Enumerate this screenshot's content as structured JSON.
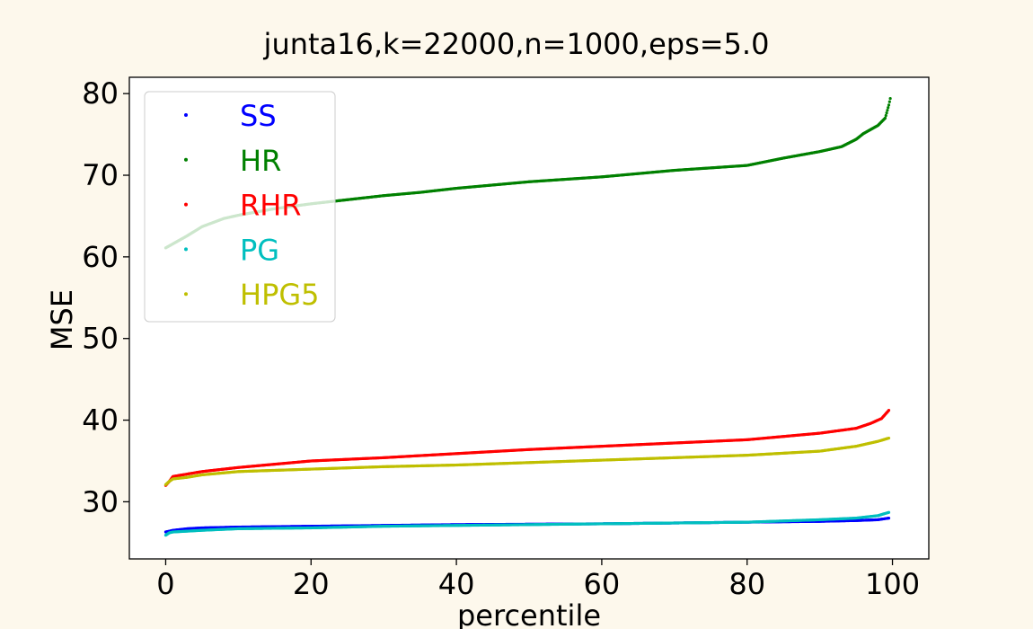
{
  "chart_data": {
    "type": "scatter",
    "title": "junta16,k=22000,n=1000,eps=5.0",
    "xlabel": "percentile",
    "ylabel": "MSE",
    "xlim": [
      -5,
      105
    ],
    "ylim": [
      23,
      82
    ],
    "xticks": [
      0,
      20,
      40,
      60,
      80,
      100
    ],
    "yticks": [
      30,
      40,
      50,
      60,
      70,
      80
    ],
    "grid": false,
    "legend_position": "upper-left",
    "series": [
      {
        "name": "SS",
        "color": "#0000ff",
        "points": [
          [
            0,
            26.3
          ],
          [
            1,
            26.5
          ],
          [
            3,
            26.7
          ],
          [
            5,
            26.8
          ],
          [
            10,
            26.9
          ],
          [
            20,
            27.0
          ],
          [
            30,
            27.1
          ],
          [
            40,
            27.2
          ],
          [
            50,
            27.25
          ],
          [
            60,
            27.3
          ],
          [
            70,
            27.4
          ],
          [
            80,
            27.5
          ],
          [
            90,
            27.6
          ],
          [
            95,
            27.7
          ],
          [
            98,
            27.8
          ],
          [
            99.5,
            28.0
          ]
        ]
      },
      {
        "name": "HR",
        "color": "#008000",
        "points": [
          [
            0,
            61.1
          ],
          [
            1,
            61.6
          ],
          [
            3,
            62.6
          ],
          [
            5,
            63.7
          ],
          [
            8,
            64.7
          ],
          [
            10,
            65.1
          ],
          [
            15,
            65.9
          ],
          [
            20,
            66.5
          ],
          [
            25,
            67.0
          ],
          [
            30,
            67.5
          ],
          [
            35,
            67.9
          ],
          [
            40,
            68.4
          ],
          [
            45,
            68.8
          ],
          [
            50,
            69.2
          ],
          [
            55,
            69.5
          ],
          [
            60,
            69.8
          ],
          [
            65,
            70.2
          ],
          [
            70,
            70.6
          ],
          [
            75,
            70.9
          ],
          [
            80,
            71.2
          ],
          [
            85,
            72.1
          ],
          [
            90,
            72.9
          ],
          [
            93,
            73.5
          ],
          [
            95,
            74.4
          ],
          [
            96,
            75.1
          ],
          [
            97,
            75.6
          ],
          [
            98,
            76.1
          ],
          [
            99,
            77.0
          ],
          [
            99.5,
            78.6
          ],
          [
            99.7,
            79.4
          ]
        ]
      },
      {
        "name": "RHR",
        "color": "#ff0000",
        "points": [
          [
            0,
            32.0
          ],
          [
            0.5,
            32.5
          ],
          [
            1,
            33.1
          ],
          [
            3,
            33.4
          ],
          [
            5,
            33.7
          ],
          [
            10,
            34.2
          ],
          [
            20,
            35.0
          ],
          [
            30,
            35.4
          ],
          [
            40,
            35.9
          ],
          [
            50,
            36.4
          ],
          [
            60,
            36.8
          ],
          [
            70,
            37.2
          ],
          [
            80,
            37.6
          ],
          [
            85,
            38.0
          ],
          [
            90,
            38.4
          ],
          [
            95,
            39.0
          ],
          [
            97,
            39.6
          ],
          [
            98.5,
            40.2
          ],
          [
            99.5,
            41.2
          ]
        ]
      },
      {
        "name": "PG",
        "color": "#00bfbf",
        "points": [
          [
            0,
            25.9
          ],
          [
            0.5,
            26.2
          ],
          [
            1,
            26.3
          ],
          [
            3,
            26.4
          ],
          [
            5,
            26.5
          ],
          [
            10,
            26.7
          ],
          [
            20,
            26.8
          ],
          [
            30,
            27.0
          ],
          [
            40,
            27.1
          ],
          [
            50,
            27.2
          ],
          [
            60,
            27.3
          ],
          [
            70,
            27.4
          ],
          [
            80,
            27.5
          ],
          [
            90,
            27.8
          ],
          [
            95,
            28.0
          ],
          [
            98,
            28.3
          ],
          [
            99.5,
            28.7
          ]
        ]
      },
      {
        "name": "HPG5",
        "color": "#bfbf00",
        "points": [
          [
            0,
            32.1
          ],
          [
            0.5,
            32.5
          ],
          [
            1,
            32.8
          ],
          [
            3,
            33.0
          ],
          [
            5,
            33.3
          ],
          [
            10,
            33.7
          ],
          [
            20,
            34.0
          ],
          [
            30,
            34.3
          ],
          [
            40,
            34.5
          ],
          [
            50,
            34.8
          ],
          [
            60,
            35.1
          ],
          [
            70,
            35.4
          ],
          [
            80,
            35.7
          ],
          [
            90,
            36.2
          ],
          [
            95,
            36.8
          ],
          [
            98,
            37.4
          ],
          [
            99.5,
            37.8
          ]
        ]
      }
    ]
  }
}
